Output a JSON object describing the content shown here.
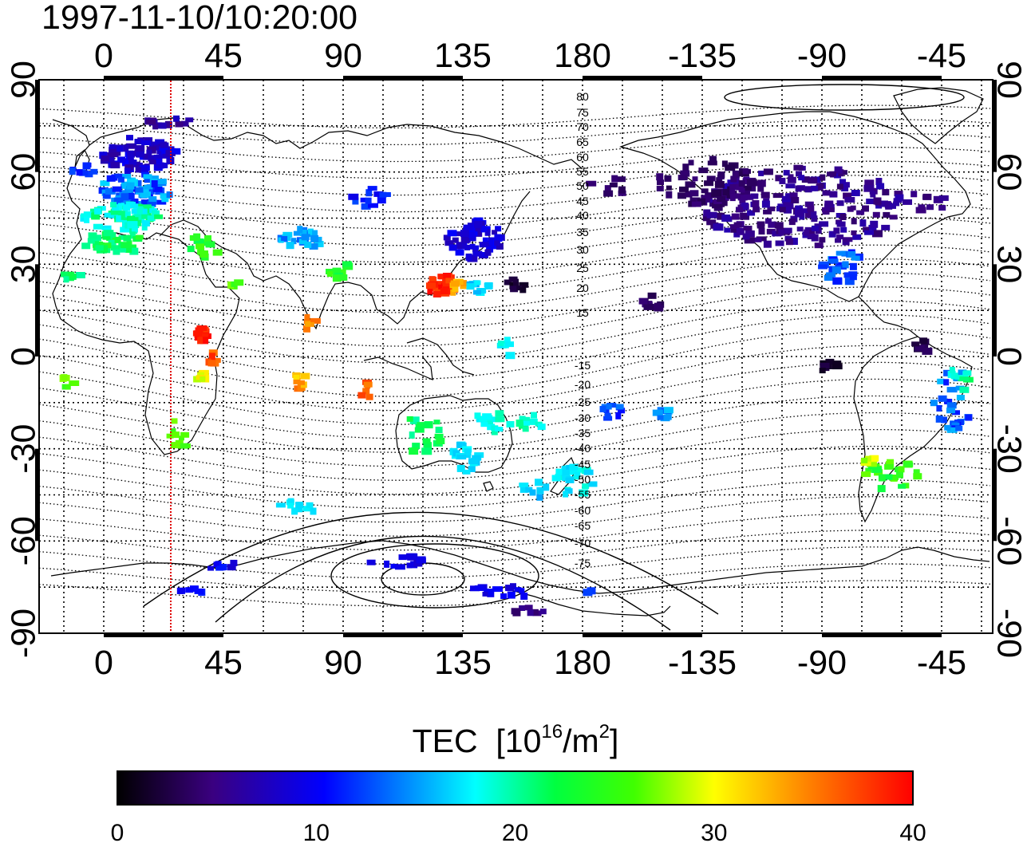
{
  "title": "1997-11-10/10:20:00",
  "map": {
    "top_axis_labels": [
      "0",
      "45",
      "90",
      "135",
      "180",
      "-135",
      "-90",
      "-45"
    ],
    "bottom_axis_labels": [
      "0",
      "45",
      "90",
      "135",
      "180",
      "-135",
      "-90",
      "-45"
    ],
    "left_axis_labels": [
      "90",
      "60",
      "30",
      "0",
      "-30",
      "-60",
      "-90"
    ],
    "right_axis_labels": [
      "90",
      "60",
      "30",
      "0",
      "-30",
      "-60",
      "-90"
    ],
    "magnetic_latitude_labels": [
      "80",
      "75",
      "70",
      "65",
      "60",
      "55",
      "50",
      "45",
      "40",
      "35",
      "30",
      "25",
      "20",
      "15",
      "-15",
      "-20",
      "-25",
      "-30",
      "-35",
      "-40",
      "-45",
      "-50",
      "-55",
      "-60",
      "-65",
      "-70",
      "-75"
    ]
  },
  "colorbar": {
    "label_text": "TEC",
    "label_unit_open": "[10",
    "label_unit_exp": "16",
    "label_unit_mid": "/m",
    "label_unit_exp2": "2",
    "label_unit_close": "]",
    "ticks": [
      "0",
      "10",
      "20",
      "30",
      "40"
    ],
    "range": [
      0,
      40
    ],
    "colors": [
      "#000000",
      "#3a0080",
      "#0000ff",
      "#00ffff",
      "#00ff00",
      "#ffff00",
      "#ff8000",
      "#ff0000"
    ]
  },
  "colors": {
    "sun_line": "#e00000",
    "frame": "#000000"
  }
}
